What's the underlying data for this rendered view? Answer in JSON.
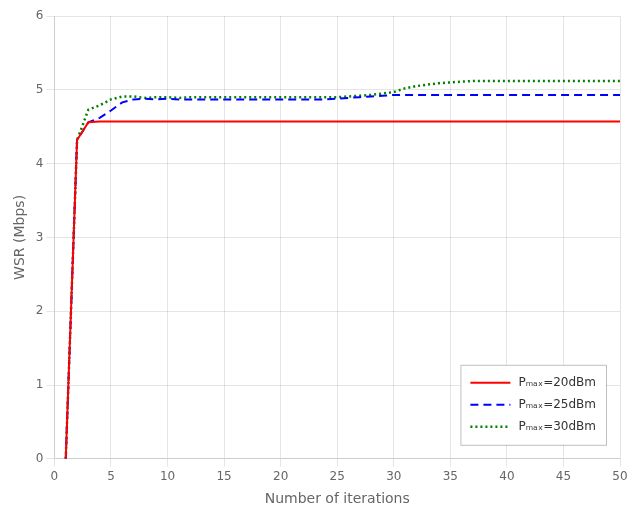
{
  "chart_data": {
    "type": "line",
    "x_label": "Number of iterations",
    "y_label": "WSR (Mbps)",
    "x": [
      1,
      2,
      3,
      4,
      5,
      6,
      7,
      8,
      9,
      10,
      11,
      12,
      13,
      14,
      15,
      16,
      17,
      18,
      19,
      20,
      21,
      22,
      23,
      24,
      25,
      26,
      27,
      28,
      29,
      30,
      31,
      32,
      33,
      34,
      35,
      36,
      37,
      38,
      39,
      40,
      41,
      42,
      43,
      44,
      45,
      46,
      47,
      48,
      49,
      50
    ],
    "series": [
      {
        "name": "Pₘₐₓ=20dBm",
        "color": "red",
        "line_style": "solid",
        "values": [
          0.0,
          4.32,
          4.56,
          4.57,
          4.57,
          4.57,
          4.57,
          4.57,
          4.57,
          4.57,
          4.57,
          4.57,
          4.57,
          4.57,
          4.57,
          4.57,
          4.57,
          4.57,
          4.57,
          4.57,
          4.57,
          4.57,
          4.57,
          4.57,
          4.57,
          4.57,
          4.57,
          4.57,
          4.57,
          4.57,
          4.57,
          4.57,
          4.57,
          4.57,
          4.57,
          4.57,
          4.57,
          4.57,
          4.57,
          4.57,
          4.57,
          4.57,
          4.57,
          4.57,
          4.57,
          4.57,
          4.57,
          4.57,
          4.57,
          4.57
        ]
      },
      {
        "name": "Pₘₐₓ=25dBm",
        "color": "blue",
        "line_style": "dashed",
        "values": [
          0.0,
          4.32,
          4.56,
          4.62,
          4.72,
          4.83,
          4.87,
          4.88,
          4.87,
          4.88,
          4.87,
          4.87,
          4.87,
          4.87,
          4.87,
          4.87,
          4.87,
          4.87,
          4.87,
          4.87,
          4.87,
          4.87,
          4.87,
          4.87,
          4.88,
          4.89,
          4.9,
          4.91,
          4.92,
          4.93,
          4.93,
          4.93,
          4.93,
          4.93,
          4.93,
          4.93,
          4.93,
          4.93,
          4.93,
          4.93,
          4.93,
          4.93,
          4.93,
          4.93,
          4.93,
          4.93,
          4.93,
          4.93,
          4.93,
          4.93
        ]
      },
      {
        "name": "Pₘₐₓ=30dBm",
        "color": "green",
        "line_style": "dotted",
        "values": [
          0.0,
          4.32,
          4.73,
          4.79,
          4.87,
          4.91,
          4.91,
          4.89,
          4.9,
          4.9,
          4.89,
          4.9,
          4.9,
          4.9,
          4.9,
          4.9,
          4.9,
          4.9,
          4.9,
          4.9,
          4.9,
          4.9,
          4.9,
          4.9,
          4.9,
          4.91,
          4.92,
          4.93,
          4.95,
          4.97,
          5.02,
          5.05,
          5.07,
          5.09,
          5.1,
          5.11,
          5.12,
          5.12,
          5.12,
          5.12,
          5.12,
          5.12,
          5.12,
          5.12,
          5.12,
          5.12,
          5.12,
          5.12,
          5.12,
          5.12
        ]
      }
    ],
    "xlim": [
      0,
      50
    ],
    "ylim": [
      0,
      6
    ],
    "xticks": [
      0,
      5,
      10,
      15,
      20,
      25,
      30,
      35,
      40,
      45,
      50
    ],
    "yticks": [
      0,
      1,
      2,
      3,
      4,
      5,
      6
    ],
    "grid": true,
    "legend": "lower right"
  }
}
